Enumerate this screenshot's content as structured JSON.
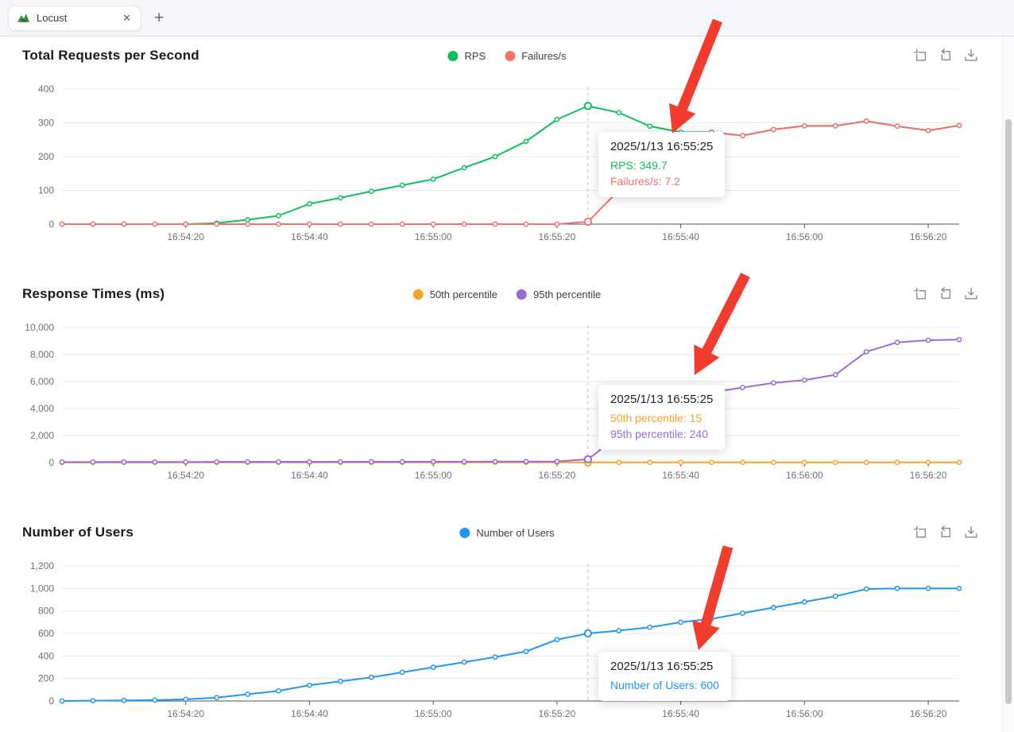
{
  "browser": {
    "tab_title": "Locust",
    "close_glyph": "✕",
    "new_tab_glyph": "+"
  },
  "toolbox": {
    "icons": [
      "box-zoom-select",
      "restore",
      "save-as-image"
    ]
  },
  "hover": {
    "date": "2025/1/13 16:55:25",
    "index": 17
  },
  "colors": {
    "rps_green": "#0ec15c",
    "failures_red": "#f2726e",
    "p50_orange": "#f7a128",
    "p95_purple": "#9b6bd3",
    "users_blue": "#2196f3",
    "arrow_red": "#f23d2e"
  },
  "annotations": {
    "color": "#f23d2e",
    "arrows": [
      {
        "from": [
          903,
          26
        ],
        "to": [
          846,
          168
        ]
      },
      {
        "from": [
          938,
          346
        ],
        "to": [
          874,
          472
        ]
      },
      {
        "from": [
          916,
          688
        ],
        "to": [
          879,
          818
        ]
      }
    ]
  },
  "chart_data": [
    {
      "type": "line",
      "title": "Total Requests per Second",
      "ylim": [
        0,
        400
      ],
      "ytick_values": [
        0,
        100,
        200,
        300,
        400
      ],
      "ytick_labels": [
        "0",
        "100",
        "200",
        "300",
        "400"
      ],
      "x": [
        "16:54:00",
        "16:54:05",
        "16:54:10",
        "16:54:15",
        "16:54:20",
        "16:54:25",
        "16:54:30",
        "16:54:35",
        "16:54:40",
        "16:54:45",
        "16:54:50",
        "16:54:55",
        "16:55:00",
        "16:55:05",
        "16:55:10",
        "16:55:15",
        "16:55:20",
        "16:55:25",
        "16:55:30",
        "16:55:35",
        "16:55:40",
        "16:55:45",
        "16:55:50",
        "16:55:55",
        "16:56:00",
        "16:56:05",
        "16:56:10",
        "16:56:15",
        "16:56:20",
        "16:56:25"
      ],
      "x_tick_indices": [
        4,
        8,
        12,
        16,
        20,
        24,
        28
      ],
      "x_tick_labels": [
        "16:54:20",
        "16:54:40",
        "16:55:00",
        "16:55:20",
        "16:55:40",
        "16:56:00",
        "16:56:20"
      ],
      "legend": [
        {
          "name": "RPS",
          "color": "#0ec15c"
        },
        {
          "name": "Failures/s",
          "color": "#f2726e"
        }
      ],
      "series": [
        {
          "name": "RPS",
          "color": "#0ec15c",
          "values": [
            0,
            0,
            0,
            0,
            0,
            3,
            13,
            25,
            60,
            78,
            97,
            115,
            133,
            167,
            200,
            245,
            310,
            349.7,
            330,
            290,
            272,
            272,
            262,
            280,
            291,
            291,
            305,
            290,
            277,
            292
          ]
        },
        {
          "name": "Failures/s",
          "color": "#f2726e",
          "values": [
            0,
            0,
            0,
            0,
            0,
            0,
            0,
            0,
            0,
            0,
            0,
            0,
            0,
            0,
            0,
            0,
            0,
            7.2,
            100,
            210,
            255,
            272,
            262,
            280,
            291,
            291,
            305,
            290,
            277,
            292
          ]
        }
      ],
      "tooltip": {
        "title": "2025/1/13 16:55:25",
        "rows": [
          {
            "text": "RPS: 349.7",
            "color": "#0ec15c"
          },
          {
            "text": "Failures/s: 7.2",
            "color": "#f2726e"
          }
        ]
      }
    },
    {
      "type": "line",
      "title": "Response Times (ms)",
      "ylim": [
        0,
        10000
      ],
      "ytick_values": [
        0,
        2000,
        4000,
        6000,
        8000,
        10000
      ],
      "ytick_labels": [
        "0",
        "2,000",
        "4,000",
        "6,000",
        "8,000",
        "10,000"
      ],
      "x": [
        "16:54:00",
        "16:54:05",
        "16:54:10",
        "16:54:15",
        "16:54:20",
        "16:54:25",
        "16:54:30",
        "16:54:35",
        "16:54:40",
        "16:54:45",
        "16:54:50",
        "16:54:55",
        "16:55:00",
        "16:55:05",
        "16:55:10",
        "16:55:15",
        "16:55:20",
        "16:55:25",
        "16:55:30",
        "16:55:35",
        "16:55:40",
        "16:55:45",
        "16:55:50",
        "16:55:55",
        "16:56:00",
        "16:56:05",
        "16:56:10",
        "16:56:15",
        "16:56:20",
        "16:56:25"
      ],
      "x_tick_indices": [
        4,
        8,
        12,
        16,
        20,
        24,
        28
      ],
      "x_tick_labels": [
        "16:54:20",
        "16:54:40",
        "16:55:00",
        "16:55:20",
        "16:55:40",
        "16:56:00",
        "16:56:20"
      ],
      "legend": [
        {
          "name": "50th percentile",
          "color": "#f7a128"
        },
        {
          "name": "95th percentile",
          "color": "#9b6bd3"
        }
      ],
      "series": [
        {
          "name": "50th percentile",
          "color": "#f7a128",
          "values": [
            10,
            10,
            11,
            11,
            12,
            12,
            13,
            13,
            13,
            14,
            14,
            14,
            15,
            15,
            15,
            15,
            15,
            15,
            15,
            15,
            15,
            15,
            15,
            15,
            15,
            15,
            15,
            15,
            15,
            15
          ]
        },
        {
          "name": "95th percentile",
          "color": "#9b6bd3",
          "values": [
            40,
            40,
            42,
            45,
            45,
            48,
            50,
            52,
            55,
            58,
            60,
            62,
            65,
            68,
            70,
            75,
            80,
            240,
            2000,
            3600,
            4700,
            5200,
            5550,
            5900,
            6100,
            6500,
            8200,
            8900,
            9050,
            9100
          ]
        }
      ],
      "tooltip": {
        "title": "2025/1/13 16:55:25",
        "rows": [
          {
            "text": "50th percentile: 15",
            "color": "#f7a128"
          },
          {
            "text": "95th percentile: 240",
            "color": "#9b6bd3"
          }
        ]
      }
    },
    {
      "type": "line",
      "title": "Number of Users",
      "ylim": [
        0,
        1200
      ],
      "ytick_values": [
        0,
        200,
        400,
        600,
        800,
        1000,
        1200
      ],
      "ytick_labels": [
        "0",
        "200",
        "400",
        "600",
        "800",
        "1,000",
        "1,200"
      ],
      "x": [
        "16:54:00",
        "16:54:05",
        "16:54:10",
        "16:54:15",
        "16:54:20",
        "16:54:25",
        "16:54:30",
        "16:54:35",
        "16:54:40",
        "16:54:45",
        "16:54:50",
        "16:54:55",
        "16:55:00",
        "16:55:05",
        "16:55:10",
        "16:55:15",
        "16:55:20",
        "16:55:25",
        "16:55:30",
        "16:55:35",
        "16:55:40",
        "16:55:45",
        "16:55:50",
        "16:55:55",
        "16:56:00",
        "16:56:05",
        "16:56:10",
        "16:56:15",
        "16:56:20",
        "16:56:25"
      ],
      "x_tick_indices": [
        4,
        8,
        12,
        16,
        20,
        24,
        28
      ],
      "x_tick_labels": [
        "16:54:20",
        "16:54:40",
        "16:55:00",
        "16:55:20",
        "16:55:40",
        "16:56:00",
        "16:56:20"
      ],
      "legend": [
        {
          "name": "Number of Users",
          "color": "#2196f3"
        }
      ],
      "series": [
        {
          "name": "Number of Users",
          "color": "#2196f3",
          "values": [
            0,
            3,
            5,
            8,
            15,
            30,
            60,
            90,
            140,
            175,
            210,
            255,
            300,
            345,
            390,
            440,
            545,
            600,
            625,
            655,
            700,
            730,
            780,
            830,
            880,
            930,
            995,
            1000,
            1000,
            1000
          ]
        }
      ],
      "tooltip": {
        "title": "2025/1/13 16:55:25",
        "rows": [
          {
            "text": "Number of Users: 600",
            "color": "#2196f3"
          }
        ]
      }
    }
  ]
}
